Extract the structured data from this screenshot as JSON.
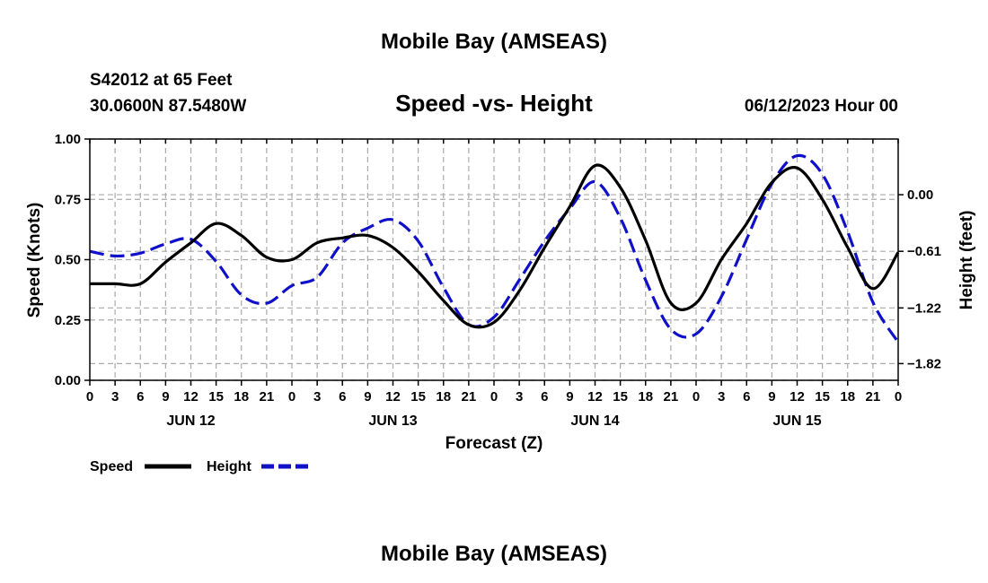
{
  "page": {
    "title": "Mobile Bay (AMSEAS)",
    "station": "S42012 at 65 Feet",
    "coords": "30.0600N  87.5480W",
    "datetime": "06/12/2023 Hour 00",
    "footer_title": "Mobile Bay (AMSEAS)"
  },
  "colors": {
    "speed": "#000000",
    "height": "#1010c8",
    "grid": "#aaaaaa"
  },
  "chart_data": {
    "type": "line",
    "title": "Speed -vs- Height",
    "xlabel": "Forecast (Z)",
    "ylabel_left": "Speed (Knots)",
    "ylabel_right": "Height (feet)",
    "ylim_left": [
      0,
      1
    ],
    "y_ticks_left": [
      "0.00",
      "0.25",
      "0.50",
      "0.75",
      "1.00"
    ],
    "y_tick_values_left": [
      0,
      0.25,
      0.5,
      0.75,
      1.0
    ],
    "ylim_right": [
      -2.0,
      0.6
    ],
    "y_ticks_right": [
      "−1.82",
      "−1.22",
      "−0.61",
      "0.00"
    ],
    "y_tick_values_right": [
      -1.82,
      -1.22,
      -0.61,
      0.0
    ],
    "x_tick_labels": [
      "0",
      "3",
      "6",
      "9",
      "12",
      "15",
      "18",
      "21",
      "0",
      "3",
      "6",
      "9",
      "12",
      "15",
      "18",
      "21",
      "0",
      "3",
      "6",
      "9",
      "12",
      "15",
      "18",
      "21",
      "0",
      "3",
      "6",
      "9",
      "12",
      "15",
      "18",
      "21",
      "0"
    ],
    "x_range_hours": [
      0,
      96
    ],
    "date_labels": [
      {
        "label": "JUN 12",
        "hour": 12
      },
      {
        "label": "JUN 13",
        "hour": 36
      },
      {
        "label": "JUN 14",
        "hour": 60
      },
      {
        "label": "JUN 15",
        "hour": 84
      }
    ],
    "grid": true,
    "legend_position": "bottom-left",
    "series": [
      {
        "name": "Speed",
        "axis": "left",
        "style": "solid",
        "x": [
          0,
          3,
          6,
          9,
          12,
          15,
          18,
          21,
          24,
          27,
          30,
          33,
          36,
          39,
          42,
          45,
          48,
          51,
          54,
          57,
          60,
          63,
          66,
          69,
          72,
          75,
          78,
          81,
          84,
          87,
          90,
          93,
          96
        ],
        "y": [
          0.4,
          0.4,
          0.4,
          0.49,
          0.57,
          0.65,
          0.6,
          0.51,
          0.5,
          0.57,
          0.59,
          0.6,
          0.55,
          0.45,
          0.33,
          0.23,
          0.24,
          0.37,
          0.55,
          0.72,
          0.89,
          0.8,
          0.58,
          0.32,
          0.32,
          0.5,
          0.65,
          0.82,
          0.88,
          0.75,
          0.55,
          0.38,
          0.53
        ]
      },
      {
        "name": "Height",
        "axis": "right",
        "style": "dashed",
        "x": [
          0,
          3,
          6,
          9,
          12,
          15,
          18,
          21,
          24,
          27,
          30,
          33,
          36,
          39,
          42,
          45,
          48,
          51,
          54,
          57,
          60,
          63,
          66,
          69,
          72,
          75,
          78,
          81,
          84,
          87,
          90,
          93,
          96
        ],
        "y": [
          -0.61,
          -0.66,
          -0.63,
          -0.53,
          -0.48,
          -0.72,
          -1.08,
          -1.17,
          -0.98,
          -0.89,
          -0.52,
          -0.36,
          -0.27,
          -0.5,
          -1.0,
          -1.4,
          -1.32,
          -0.92,
          -0.5,
          -0.15,
          0.14,
          -0.25,
          -0.92,
          -1.45,
          -1.5,
          -1.1,
          -0.48,
          0.12,
          0.42,
          0.22,
          -0.4,
          -1.16,
          -1.59
        ]
      }
    ]
  }
}
